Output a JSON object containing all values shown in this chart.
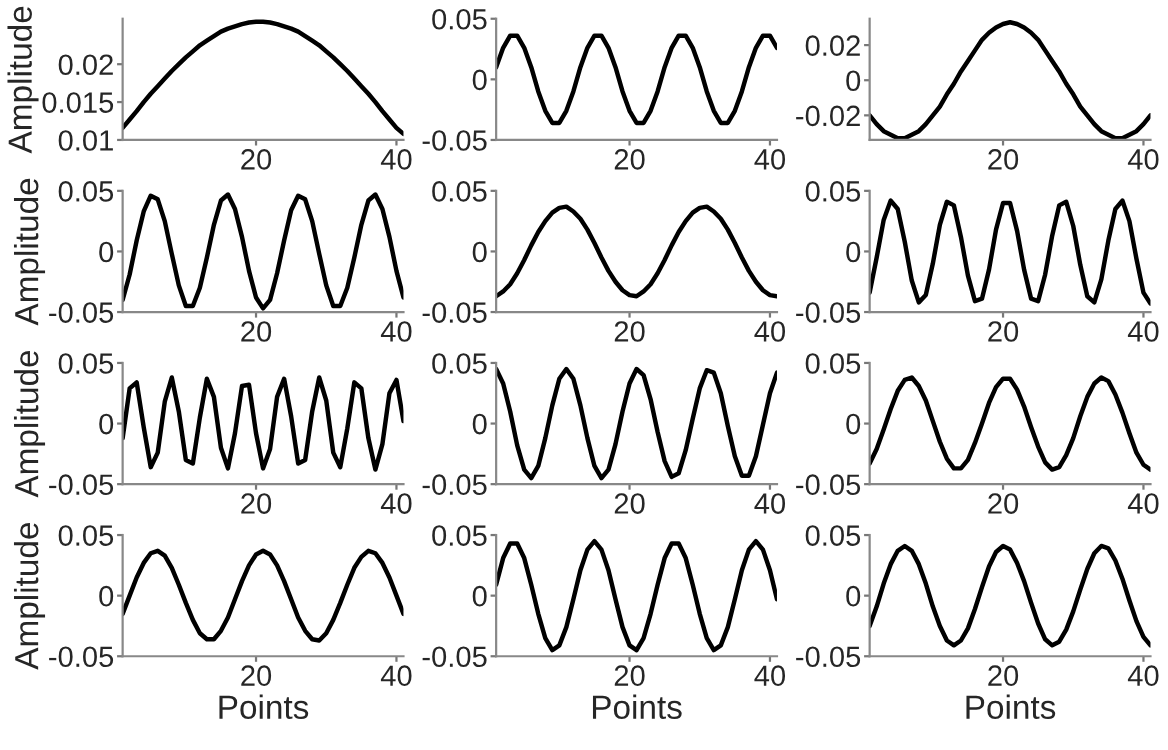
{
  "chart_data": [
    {
      "type": "line",
      "ylabel": "Amplitude",
      "x": [
        1,
        2,
        3,
        4,
        5,
        6,
        7,
        8,
        9,
        10,
        11,
        12,
        13,
        14,
        15,
        16,
        17,
        18,
        19,
        20,
        21,
        22,
        23,
        24,
        25,
        26,
        27,
        28,
        29,
        30,
        31,
        32,
        33,
        34,
        35,
        36,
        37,
        38,
        39,
        40,
        41
      ],
      "xlim": [
        1,
        41
      ],
      "xticks": [
        20,
        40
      ],
      "ylim": [
        0.01,
        0.026
      ],
      "yticks": [
        0.01,
        0.015,
        0.02
      ],
      "grid": false,
      "line_style": "solid",
      "marker": "none",
      "series": [
        {
          "color": "#000000",
          "values": [
            0.0116,
            0.0127,
            0.0138,
            0.015,
            0.0161,
            0.0171,
            0.0181,
            0.0191,
            0.02,
            0.0209,
            0.0217,
            0.0225,
            0.0231,
            0.0237,
            0.0243,
            0.0247,
            0.025,
            0.0253,
            0.0255,
            0.0256,
            0.0256,
            0.0255,
            0.0253,
            0.025,
            0.0247,
            0.0243,
            0.0237,
            0.0231,
            0.0225,
            0.0217,
            0.0209,
            0.02,
            0.0191,
            0.0181,
            0.0171,
            0.0161,
            0.015,
            0.0138,
            0.0127,
            0.0116,
            0.0108
          ]
        }
      ]
    },
    {
      "type": "line",
      "x": [
        1,
        2,
        3,
        4,
        5,
        6,
        7,
        8,
        9,
        10,
        11,
        12,
        13,
        14,
        15,
        16,
        17,
        18,
        19,
        20,
        21,
        22,
        23,
        24,
        25,
        26,
        27,
        28,
        29,
        30,
        31,
        32,
        33,
        34,
        35,
        36,
        37,
        38,
        39,
        40,
        41
      ],
      "xlim": [
        1,
        41
      ],
      "xticks": [
        20,
        40
      ],
      "ylim": [
        -0.05,
        0.05
      ],
      "yticks": [
        -0.05,
        0,
        0.05
      ],
      "grid": false,
      "line_style": "solid",
      "marker": "none",
      "series": [
        {
          "color": "#000000",
          "values": [
            0.01,
            0.026,
            0.036,
            0.036,
            0.026,
            0.01,
            -0.01,
            -0.026,
            -0.036,
            -0.036,
            -0.026,
            -0.01,
            0.01,
            0.026,
            0.036,
            0.036,
            0.026,
            0.01,
            -0.01,
            -0.026,
            -0.036,
            -0.036,
            -0.026,
            -0.01,
            0.01,
            0.026,
            0.036,
            0.036,
            0.026,
            0.01,
            -0.01,
            -0.026,
            -0.036,
            -0.036,
            -0.026,
            -0.01,
            0.01,
            0.026,
            0.036,
            0.036,
            0.026
          ]
        }
      ]
    },
    {
      "type": "line",
      "x": [
        1,
        2,
        3,
        4,
        5,
        6,
        7,
        8,
        9,
        10,
        11,
        12,
        13,
        14,
        15,
        16,
        17,
        18,
        19,
        20,
        21,
        22,
        23,
        24,
        25,
        26,
        27,
        28,
        29,
        30,
        31,
        32,
        33,
        34,
        35,
        36,
        37,
        38,
        39,
        40,
        41
      ],
      "xlim": [
        1,
        41
      ],
      "xticks": [
        20,
        40
      ],
      "ylim": [
        -0.034,
        0.035
      ],
      "yticks": [
        -0.02,
        0,
        0.02
      ],
      "grid": false,
      "line_style": "solid",
      "marker": "none",
      "series": [
        {
          "color": "#000000",
          "values": [
            -0.02,
            -0.025,
            -0.029,
            -0.031,
            -0.033,
            -0.033,
            -0.031,
            -0.029,
            -0.025,
            -0.02,
            -0.015,
            -0.008,
            -0.002,
            0.005,
            0.011,
            0.017,
            0.023,
            0.027,
            0.03,
            0.032,
            0.033,
            0.032,
            0.03,
            0.027,
            0.023,
            0.017,
            0.011,
            0.005,
            -0.002,
            -0.008,
            -0.015,
            -0.02,
            -0.025,
            -0.029,
            -0.031,
            -0.033,
            -0.033,
            -0.031,
            -0.029,
            -0.025,
            -0.02
          ]
        }
      ]
    },
    {
      "type": "line",
      "ylabel": "Amplitude",
      "x": [
        1,
        2,
        3,
        4,
        5,
        6,
        7,
        8,
        9,
        10,
        11,
        12,
        13,
        14,
        15,
        16,
        17,
        18,
        19,
        20,
        21,
        22,
        23,
        24,
        25,
        26,
        27,
        28,
        29,
        30,
        31,
        32,
        33,
        34,
        35,
        36,
        37,
        38,
        39,
        40,
        41
      ],
      "xlim": [
        1,
        41
      ],
      "xticks": [
        20,
        40
      ],
      "ylim": [
        -0.05,
        0.05
      ],
      "yticks": [
        -0.05,
        0,
        0.05
      ],
      "grid": false,
      "line_style": "solid",
      "marker": "none",
      "series": [
        {
          "color": "#000000",
          "values": [
            -0.04,
            -0.019,
            0.009,
            0.033,
            0.046,
            0.043,
            0.025,
            -0.002,
            -0.028,
            -0.045,
            -0.045,
            -0.03,
            -0.005,
            0.022,
            0.042,
            0.047,
            0.035,
            0.012,
            -0.016,
            -0.038,
            -0.047,
            -0.04,
            -0.018,
            0.009,
            0.034,
            0.046,
            0.043,
            0.025,
            -0.002,
            -0.028,
            -0.045,
            -0.045,
            -0.03,
            -0.005,
            0.022,
            0.042,
            0.047,
            0.035,
            0.012,
            -0.016,
            -0.038
          ]
        }
      ]
    },
    {
      "type": "line",
      "x": [
        1,
        2,
        3,
        4,
        5,
        6,
        7,
        8,
        9,
        10,
        11,
        12,
        13,
        14,
        15,
        16,
        17,
        18,
        19,
        20,
        21,
        22,
        23,
        24,
        25,
        26,
        27,
        28,
        29,
        30,
        31,
        32,
        33,
        34,
        35,
        36,
        37,
        38,
        39,
        40,
        41
      ],
      "xlim": [
        1,
        41
      ],
      "xticks": [
        20,
        40
      ],
      "ylim": [
        -0.05,
        0.05
      ],
      "yticks": [
        -0.05,
        0,
        0.05
      ],
      "grid": false,
      "line_style": "solid",
      "marker": "none",
      "series": [
        {
          "color": "#000000",
          "values": [
            -0.037,
            -0.033,
            -0.027,
            -0.018,
            -0.007,
            0.005,
            0.016,
            0.025,
            0.032,
            0.036,
            0.037,
            0.033,
            0.027,
            0.018,
            0.007,
            -0.005,
            -0.016,
            -0.025,
            -0.032,
            -0.036,
            -0.037,
            -0.033,
            -0.027,
            -0.018,
            -0.007,
            0.005,
            0.016,
            0.025,
            0.032,
            0.036,
            0.037,
            0.033,
            0.027,
            0.018,
            0.007,
            -0.005,
            -0.016,
            -0.025,
            -0.032,
            -0.036,
            -0.037
          ]
        }
      ]
    },
    {
      "type": "line",
      "x": [
        1,
        2,
        3,
        4,
        5,
        6,
        7,
        8,
        9,
        10,
        11,
        12,
        13,
        14,
        15,
        16,
        17,
        18,
        19,
        20,
        21,
        22,
        23,
        24,
        25,
        26,
        27,
        28,
        29,
        30,
        31,
        32,
        33,
        34,
        35,
        36,
        37,
        38,
        39,
        40,
        41
      ],
      "xlim": [
        1,
        41
      ],
      "xticks": [
        20,
        40
      ],
      "ylim": [
        -0.05,
        0.05
      ],
      "yticks": [
        -0.05,
        0,
        0.05
      ],
      "grid": false,
      "line_style": "solid",
      "marker": "none",
      "series": [
        {
          "color": "#000000",
          "values": [
            -0.034,
            -0.005,
            0.026,
            0.042,
            0.035,
            0.008,
            -0.024,
            -0.042,
            -0.036,
            -0.01,
            0.022,
            0.041,
            0.038,
            0.012,
            -0.02,
            -0.041,
            -0.039,
            -0.015,
            0.018,
            0.04,
            0.04,
            0.017,
            -0.015,
            -0.039,
            -0.041,
            -0.019,
            0.013,
            0.038,
            0.041,
            0.021,
            -0.011,
            -0.037,
            -0.042,
            -0.023,
            0.009,
            0.035,
            0.042,
            0.025,
            -0.006,
            -0.034,
            -0.043
          ]
        }
      ]
    },
    {
      "type": "line",
      "ylabel": "Amplitude",
      "x": [
        1,
        2,
        3,
        4,
        5,
        6,
        7,
        8,
        9,
        10,
        11,
        12,
        13,
        14,
        15,
        16,
        17,
        18,
        19,
        20,
        21,
        22,
        23,
        24,
        25,
        26,
        27,
        28,
        29,
        30,
        31,
        32,
        33,
        34,
        35,
        36,
        37,
        38,
        39,
        40,
        41
      ],
      "xlim": [
        1,
        41
      ],
      "xticks": [
        20,
        40
      ],
      "ylim": [
        -0.05,
        0.05
      ],
      "yticks": [
        -0.05,
        0,
        0.05
      ],
      "grid": false,
      "line_style": "solid",
      "marker": "none",
      "series": [
        {
          "color": "#000000",
          "values": [
            -0.012,
            0.029,
            0.034,
            -0.003,
            -0.036,
            -0.024,
            0.018,
            0.038,
            0.01,
            -0.03,
            -0.033,
            0.005,
            0.037,
            0.022,
            -0.02,
            -0.037,
            -0.008,
            0.031,
            0.032,
            -0.008,
            -0.037,
            -0.021,
            0.022,
            0.037,
            0.006,
            -0.033,
            -0.03,
            0.01,
            0.038,
            0.019,
            -0.024,
            -0.036,
            -0.004,
            0.034,
            0.029,
            -0.012,
            -0.038,
            -0.017,
            0.025,
            0.036,
            0.002
          ]
        }
      ]
    },
    {
      "type": "line",
      "x": [
        1,
        2,
        3,
        4,
        5,
        6,
        7,
        8,
        9,
        10,
        11,
        12,
        13,
        14,
        15,
        16,
        17,
        18,
        19,
        20,
        21,
        22,
        23,
        24,
        25,
        26,
        27,
        28,
        29,
        30,
        31,
        32,
        33,
        34,
        35,
        36,
        37,
        38,
        39,
        40,
        41
      ],
      "xlim": [
        1,
        41
      ],
      "xticks": [
        20,
        40
      ],
      "ylim": [
        -0.05,
        0.05
      ],
      "yticks": [
        -0.05,
        0,
        0.05
      ],
      "grid": false,
      "line_style": "solid",
      "marker": "none",
      "series": [
        {
          "color": "#000000",
          "values": [
            0.045,
            0.033,
            0.01,
            -0.018,
            -0.038,
            -0.045,
            -0.035,
            -0.012,
            0.015,
            0.037,
            0.045,
            0.037,
            0.015,
            -0.012,
            -0.035,
            -0.045,
            -0.038,
            -0.017,
            0.01,
            0.033,
            0.045,
            0.04,
            0.02,
            -0.007,
            -0.031,
            -0.044,
            -0.041,
            -0.022,
            0.004,
            0.029,
            0.044,
            0.042,
            0.025,
            -0.002,
            -0.027,
            -0.043,
            -0.043,
            -0.027,
            -0.001,
            0.025,
            0.042
          ]
        }
      ]
    },
    {
      "type": "line",
      "x": [
        1,
        2,
        3,
        4,
        5,
        6,
        7,
        8,
        9,
        10,
        11,
        12,
        13,
        14,
        15,
        16,
        17,
        18,
        19,
        20,
        21,
        22,
        23,
        24,
        25,
        26,
        27,
        28,
        29,
        30,
        31,
        32,
        33,
        34,
        35,
        36,
        37,
        38,
        39,
        40,
        41
      ],
      "xlim": [
        1,
        41
      ],
      "xticks": [
        20,
        40
      ],
      "ylim": [
        -0.05,
        0.05
      ],
      "yticks": [
        -0.05,
        0,
        0.05
      ],
      "grid": false,
      "line_style": "solid",
      "marker": "none",
      "series": [
        {
          "color": "#000000",
          "values": [
            -0.033,
            -0.021,
            -0.005,
            0.012,
            0.027,
            0.036,
            0.038,
            0.031,
            0.019,
            0.002,
            -0.015,
            -0.029,
            -0.037,
            -0.037,
            -0.03,
            -0.016,
            0.0,
            0.017,
            0.03,
            0.037,
            0.037,
            0.028,
            0.014,
            -0.003,
            -0.019,
            -0.032,
            -0.038,
            -0.036,
            -0.026,
            -0.012,
            0.006,
            0.022,
            0.033,
            0.038,
            0.035,
            0.024,
            0.009,
            -0.008,
            -0.024,
            -0.034,
            -0.038
          ]
        }
      ]
    },
    {
      "type": "line",
      "ylabel": "Amplitude",
      "xlabel": "Points",
      "x": [
        1,
        2,
        3,
        4,
        5,
        6,
        7,
        8,
        9,
        10,
        11,
        12,
        13,
        14,
        15,
        16,
        17,
        18,
        19,
        20,
        21,
        22,
        23,
        24,
        25,
        26,
        27,
        28,
        29,
        30,
        31,
        32,
        33,
        34,
        35,
        36,
        37,
        38,
        39,
        40,
        41
      ],
      "xlim": [
        1,
        41
      ],
      "xticks": [
        20,
        40
      ],
      "ylim": [
        -0.05,
        0.05
      ],
      "yticks": [
        -0.05,
        0,
        0.05
      ],
      "grid": false,
      "line_style": "solid",
      "marker": "none",
      "series": [
        {
          "color": "#000000",
          "values": [
            -0.015,
            0.0,
            0.015,
            0.027,
            0.035,
            0.037,
            0.033,
            0.023,
            0.009,
            -0.006,
            -0.02,
            -0.031,
            -0.036,
            -0.036,
            -0.029,
            -0.018,
            -0.003,
            0.012,
            0.025,
            0.034,
            0.037,
            0.034,
            0.025,
            0.012,
            -0.003,
            -0.018,
            -0.029,
            -0.036,
            -0.037,
            -0.031,
            -0.02,
            -0.006,
            0.009,
            0.023,
            0.032,
            0.037,
            0.035,
            0.027,
            0.015,
            0.0,
            -0.015
          ]
        }
      ]
    },
    {
      "type": "line",
      "xlabel": "Points",
      "x": [
        1,
        2,
        3,
        4,
        5,
        6,
        7,
        8,
        9,
        10,
        11,
        12,
        13,
        14,
        15,
        16,
        17,
        18,
        19,
        20,
        21,
        22,
        23,
        24,
        25,
        26,
        27,
        28,
        29,
        30,
        31,
        32,
        33,
        34,
        35,
        36,
        37,
        38,
        39,
        40,
        41
      ],
      "xlim": [
        1,
        41
      ],
      "xticks": [
        20,
        40
      ],
      "ylim": [
        -0.05,
        0.05
      ],
      "yticks": [
        -0.05,
        0,
        0.05
      ],
      "grid": false,
      "line_style": "solid",
      "marker": "none",
      "series": [
        {
          "color": "#000000",
          "values": [
            0.009,
            0.031,
            0.043,
            0.043,
            0.031,
            0.009,
            -0.015,
            -0.035,
            -0.045,
            -0.041,
            -0.026,
            -0.003,
            0.021,
            0.038,
            0.045,
            0.038,
            0.021,
            -0.003,
            -0.026,
            -0.041,
            -0.045,
            -0.035,
            -0.015,
            0.009,
            0.031,
            0.043,
            0.043,
            0.031,
            0.009,
            -0.015,
            -0.035,
            -0.045,
            -0.041,
            -0.026,
            -0.003,
            0.021,
            0.038,
            0.045,
            0.038,
            0.021,
            -0.003
          ]
        }
      ]
    },
    {
      "type": "line",
      "xlabel": "Points",
      "x": [
        1,
        2,
        3,
        4,
        5,
        6,
        7,
        8,
        9,
        10,
        11,
        12,
        13,
        14,
        15,
        16,
        17,
        18,
        19,
        20,
        21,
        22,
        23,
        24,
        25,
        26,
        27,
        28,
        29,
        30,
        31,
        32,
        33,
        34,
        35,
        36,
        37,
        38,
        39,
        40,
        41
      ],
      "xlim": [
        1,
        41
      ],
      "xticks": [
        20,
        40
      ],
      "ylim": [
        -0.05,
        0.05
      ],
      "yticks": [
        -0.05,
        0,
        0.05
      ],
      "grid": false,
      "line_style": "solid",
      "marker": "none",
      "series": [
        {
          "color": "#000000",
          "values": [
            -0.025,
            -0.009,
            0.01,
            0.026,
            0.037,
            0.041,
            0.037,
            0.026,
            0.01,
            -0.009,
            -0.025,
            -0.037,
            -0.041,
            -0.037,
            -0.027,
            -0.011,
            0.007,
            0.024,
            0.036,
            0.041,
            0.038,
            0.027,
            0.012,
            -0.006,
            -0.023,
            -0.036,
            -0.041,
            -0.038,
            -0.028,
            -0.013,
            0.005,
            0.022,
            0.035,
            0.041,
            0.039,
            0.029,
            0.014,
            -0.004,
            -0.021,
            -0.034,
            -0.041
          ]
        }
      ]
    }
  ]
}
